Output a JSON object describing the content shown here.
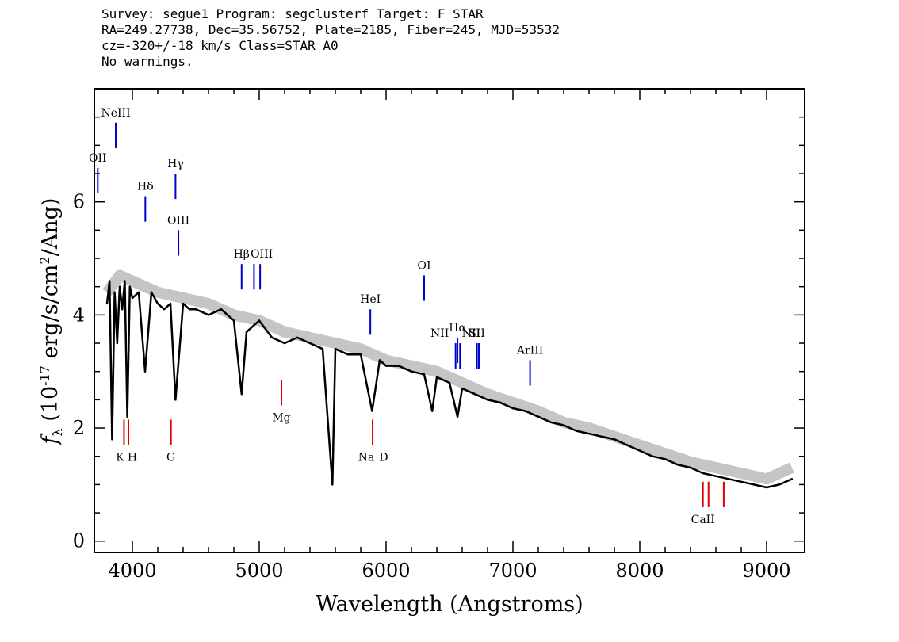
{
  "header": {
    "line1": "Survey: segue1 Program: segclusterf Target: F_STAR",
    "line2": "RA=249.27738, Dec=35.56752, Plate=2185, Fiber=245, MJD=53532",
    "line3": "cz=-320+/-18 km/s Class=STAR A0",
    "line4": "No warnings."
  },
  "chart_data": {
    "type": "line",
    "xlabel": "Wavelength (Angstroms)",
    "ylabel": "f_λ (10^-17 erg/s/cm^2/Ang)",
    "xlim": [
      3700,
      9300
    ],
    "ylim": [
      -0.2,
      8.0
    ],
    "xticks": [
      4000,
      5000,
      6000,
      7000,
      8000,
      9000
    ],
    "yticks": [
      0,
      2,
      4,
      6
    ],
    "series": [
      {
        "color": "#000000",
        "x": [
          3800,
          3820,
          3840,
          3860,
          3880,
          3900,
          3920,
          3940,
          3960,
          3980,
          4000,
          4050,
          4100,
          4150,
          4200,
          4250,
          4300,
          4340,
          4400,
          4450,
          4500,
          4600,
          4700,
          4800,
          4861,
          4900,
          5000,
          5100,
          5200,
          5300,
          5400,
          5500,
          5577,
          5600,
          5700,
          5800,
          5890,
          5950,
          6000,
          6100,
          6200,
          6300,
          6364,
          6400,
          6500,
          6563,
          6600,
          6700,
          6800,
          6900,
          7000,
          7100,
          7200,
          7300,
          7400,
          7500,
          7600,
          7700,
          7800,
          7900,
          8000,
          8100,
          8200,
          8300,
          8400,
          8500,
          8600,
          8700,
          8800,
          8900,
          9000,
          9100,
          9200
        ],
        "y": [
          4.2,
          4.6,
          1.8,
          4.4,
          3.5,
          4.5,
          4.1,
          4.6,
          2.2,
          4.5,
          4.3,
          4.4,
          3.0,
          4.4,
          4.2,
          4.1,
          4.2,
          2.5,
          4.2,
          4.1,
          4.1,
          4.0,
          4.1,
          3.9,
          2.6,
          3.7,
          3.9,
          3.6,
          3.5,
          3.6,
          3.5,
          3.4,
          1.0,
          3.4,
          3.3,
          3.3,
          2.3,
          3.2,
          3.1,
          3.1,
          3.0,
          2.95,
          2.3,
          2.9,
          2.8,
          2.2,
          2.7,
          2.6,
          2.5,
          2.45,
          2.35,
          2.3,
          2.2,
          2.1,
          2.05,
          1.95,
          1.9,
          1.85,
          1.8,
          1.7,
          1.6,
          1.5,
          1.45,
          1.35,
          1.3,
          1.2,
          1.15,
          1.1,
          1.05,
          1.0,
          0.95,
          1.0,
          1.1
        ]
      },
      {
        "color": "#bfbfbf",
        "x": [
          3800,
          3900,
          4000,
          4200,
          4400,
          4600,
          4800,
          5000,
          5200,
          5400,
          5600,
          5800,
          6000,
          6200,
          6400,
          6600,
          6800,
          7000,
          7200,
          7400,
          7600,
          7800,
          8000,
          8200,
          8400,
          8600,
          8800,
          9000,
          9200
        ],
        "y": [
          4.4,
          4.7,
          4.6,
          4.4,
          4.3,
          4.2,
          4.0,
          3.9,
          3.7,
          3.6,
          3.5,
          3.4,
          3.2,
          3.1,
          3.0,
          2.8,
          2.6,
          2.45,
          2.3,
          2.1,
          2.0,
          1.85,
          1.7,
          1.55,
          1.4,
          1.3,
          1.2,
          1.1,
          1.3
        ]
      }
    ],
    "emission_lines": [
      {
        "label": "OII",
        "wavelength": 3727,
        "y": 6.6
      },
      {
        "label": "NeIII",
        "wavelength": 3869,
        "y": 7.4
      },
      {
        "label": "Hδ",
        "wavelength": 4102,
        "y": 6.1
      },
      {
        "label": "Hγ",
        "wavelength": 4340,
        "y": 6.5
      },
      {
        "label": "OIII",
        "wavelength": 4363,
        "y": 5.5
      },
      {
        "label": "Hβ",
        "wavelength": 4861,
        "y": 4.9
      },
      {
        "label": "OIII",
        "wavelength": 4959,
        "y": 4.9
      },
      {
        "label": "OIII",
        "wavelength": 5007,
        "y": 4.9
      },
      {
        "label": "HeI",
        "wavelength": 5876,
        "y": 4.1
      },
      {
        "label": "OI",
        "wavelength": 6300,
        "y": 4.7
      },
      {
        "label": "NII",
        "wavelength": 6548,
        "y": 3.5
      },
      {
        "label": "Hα",
        "wavelength": 6563,
        "y": 3.6
      },
      {
        "label": "NII",
        "wavelength": 6583,
        "y": 3.5
      },
      {
        "label": "SII",
        "wavelength": 6716,
        "y": 3.5
      },
      {
        "label": "SII",
        "wavelength": 6731,
        "y": 3.5
      },
      {
        "label": "ArIII",
        "wavelength": 7135,
        "y": 3.2
      }
    ],
    "absorption_lines": [
      {
        "label": "K",
        "wavelength": 3934,
        "y": 1.7
      },
      {
        "label": "H",
        "wavelength": 3969,
        "y": 1.7
      },
      {
        "label": "G",
        "wavelength": 4304,
        "y": 1.7
      },
      {
        "label": "Mg",
        "wavelength": 5175,
        "y": 2.4
      },
      {
        "label": "Na",
        "wavelength": 5894,
        "y": 1.7
      },
      {
        "label": "D",
        "wavelength": 5894,
        "y": 1.7
      },
      {
        "label": "CaII",
        "wavelength": 8498,
        "y": 0.6
      },
      {
        "label": "CaII",
        "wavelength": 8542,
        "y": 0.6
      },
      {
        "label": "CaII",
        "wavelength": 8662,
        "y": 0.6
      }
    ],
    "colors": {
      "emission": "#0000cc",
      "absorption": "#dd0000",
      "spectrum": "#000000",
      "error": "#bfbfbf"
    }
  }
}
